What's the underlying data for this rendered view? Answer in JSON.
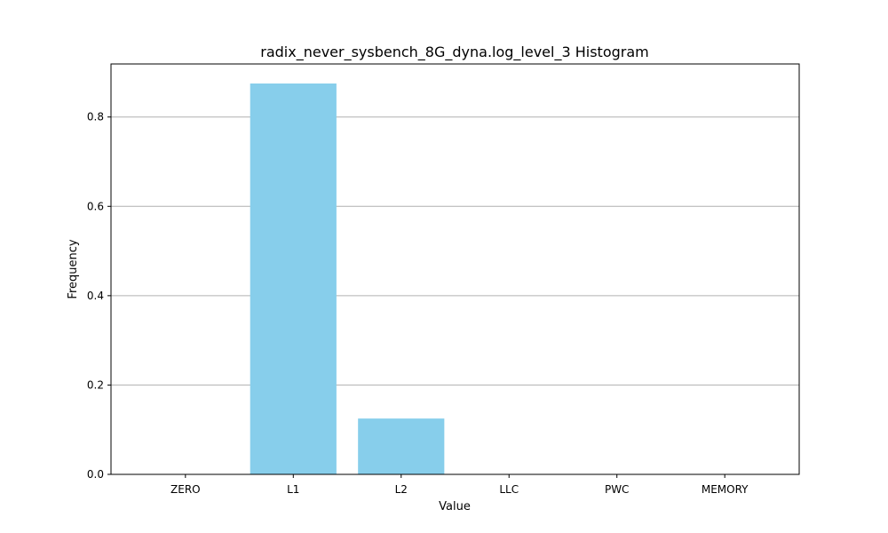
{
  "chart_data": {
    "type": "bar",
    "title": "radix_never_sysbench_8G_dyna.log_level_3 Histogram",
    "xlabel": "Value",
    "ylabel": "Frequency",
    "categories": [
      "ZERO",
      "L1",
      "L2",
      "LLC",
      "PWC",
      "MEMORY"
    ],
    "values": [
      0,
      0.875,
      0.125,
      0,
      0,
      0
    ],
    "ylim": [
      0,
      0.91875
    ],
    "yticks": [
      0.0,
      0.2,
      0.4,
      0.6,
      0.8
    ],
    "ytick_labels": [
      "0.0",
      "0.2",
      "0.4",
      "0.6",
      "0.8"
    ],
    "grid": "y",
    "bar_color": "#87ceeb"
  }
}
